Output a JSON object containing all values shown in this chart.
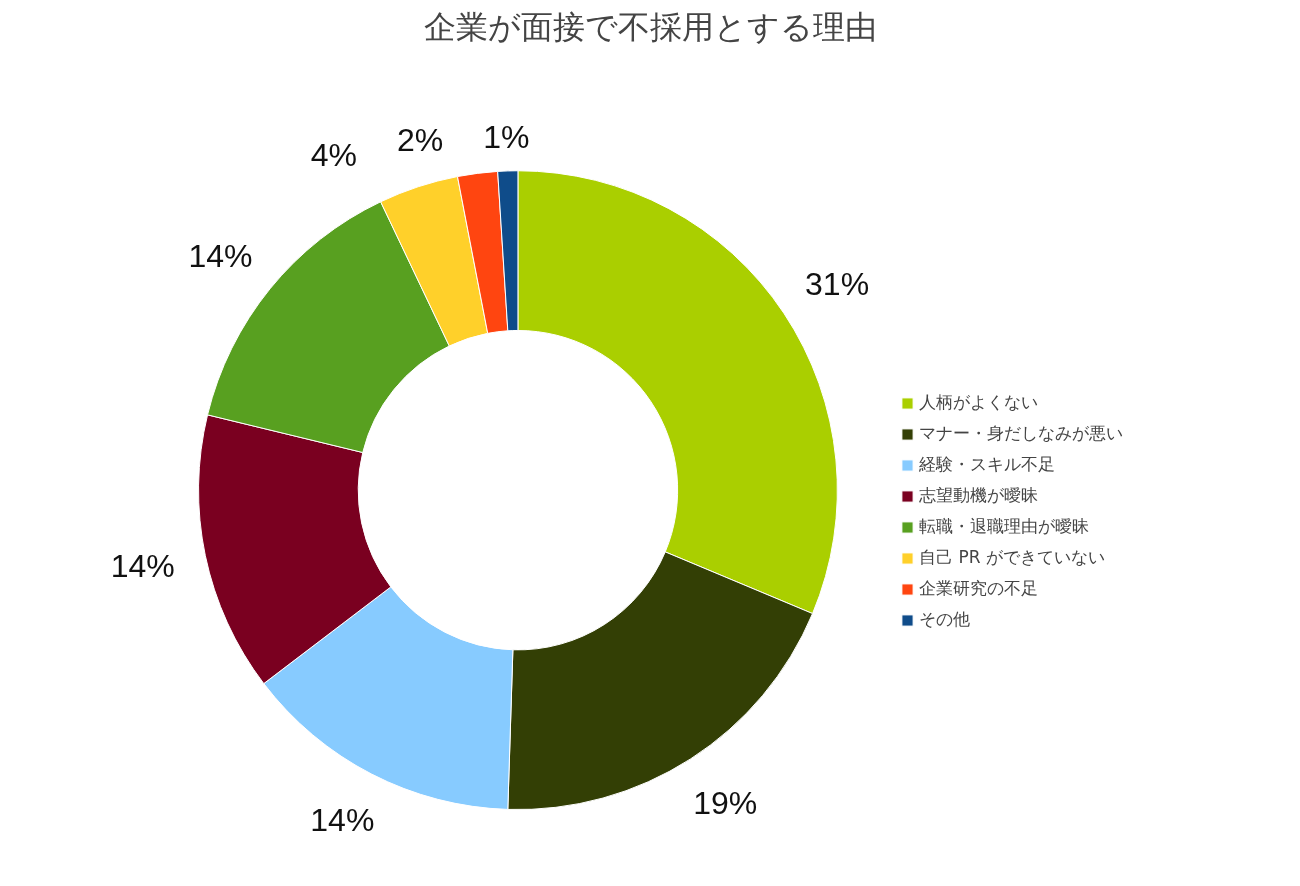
{
  "chart_data": {
    "type": "donut",
    "title": "企業が面接で不採用とする理由",
    "categories": [
      "人柄がよくない",
      "マナー・身だしなみが悪い",
      "経験・スキル不足",
      "志望動機が曖昧",
      "転職・退職理由が曖昧",
      "自己 PR ができていない",
      "企業研究の不足",
      "その他"
    ],
    "values": [
      31,
      19,
      14,
      14,
      14,
      4,
      2,
      1
    ],
    "value_labels": [
      "31%",
      "19%",
      "14%",
      "14%",
      "14%",
      "4%",
      "2%",
      "1%"
    ],
    "colors": [
      "#aacf00",
      "#333f05",
      "#87cbff",
      "#7a0020",
      "#58a020",
      "#ffd02a",
      "#ff4510",
      "#0f4c8a"
    ],
    "legend": "right"
  }
}
